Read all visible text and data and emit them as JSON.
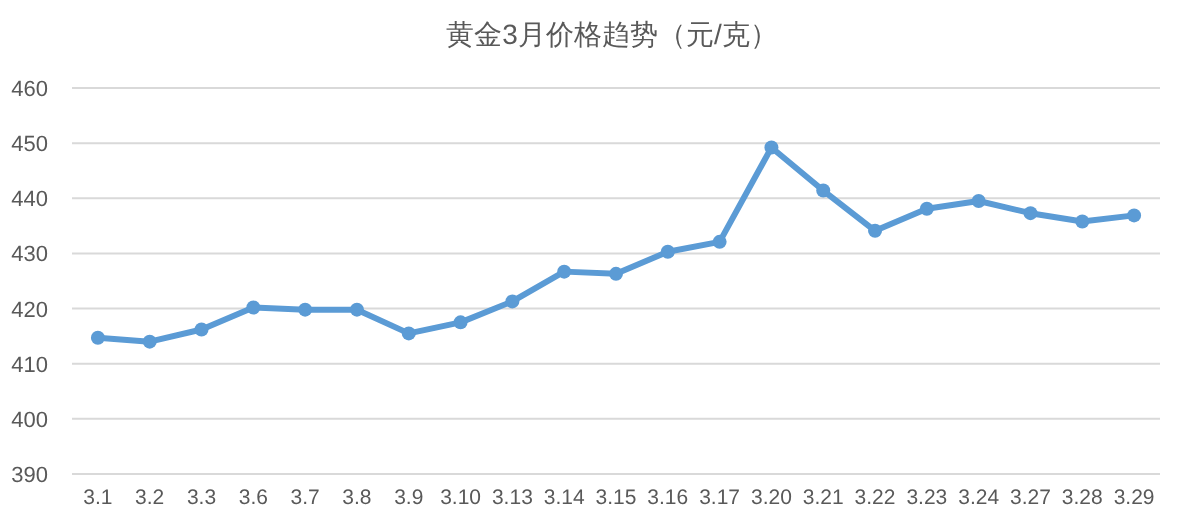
{
  "chart_data": {
    "type": "line",
    "title": "黄金3月价格趋势（元/克）",
    "categories": [
      "3.1",
      "3.2",
      "3.3",
      "3.6",
      "3.7",
      "3.8",
      "3.9",
      "3.10",
      "3.13",
      "3.14",
      "3.15",
      "3.16",
      "3.17",
      "3.20",
      "3.21",
      "3.22",
      "3.23",
      "3.24",
      "3.27",
      "3.28",
      "3.29"
    ],
    "series": [
      {
        "color": "#5b9bd5",
        "values": [
          414.7,
          414,
          416.2,
          420.2,
          419.8,
          419.8,
          415.5,
          417.5,
          421.3,
          426.7,
          426.3,
          430.3,
          432.1,
          449.2,
          441.4,
          434.1,
          438.1,
          439.5,
          437.3,
          435.8,
          436.9
        ]
      }
    ],
    "ylim": [
      390,
      460
    ],
    "yticks": [
      390,
      400,
      410,
      420,
      430,
      440,
      450,
      460
    ],
    "grid": "y",
    "marker": "circle",
    "line_style": "solid"
  }
}
